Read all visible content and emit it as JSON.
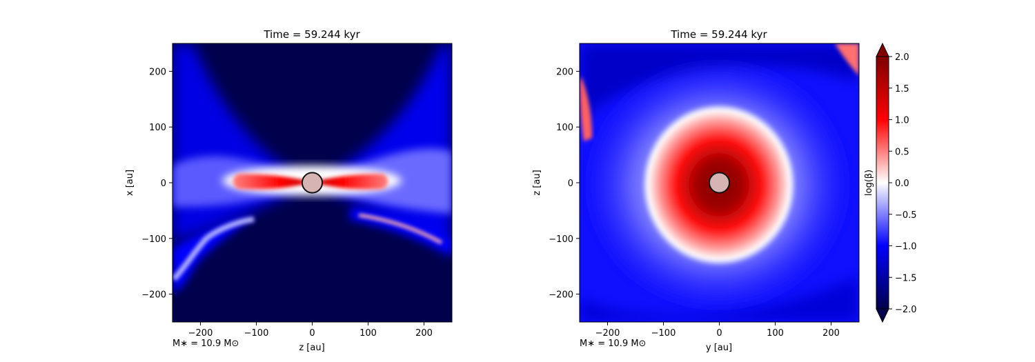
{
  "chart_data": [
    {
      "type": "heatmap",
      "title": "Time = 59.244 kyr",
      "xlabel": "z [au]",
      "ylabel": "x [au]",
      "xlim": [
        -250,
        250
      ],
      "ylim": [
        -250,
        250
      ],
      "xticks": [
        -200,
        -100,
        0,
        100,
        200
      ],
      "yticks": [
        -200,
        -100,
        0,
        100,
        200
      ],
      "annotation": "M∗ = 10.9 M⊙",
      "sink_radius": 18,
      "sink_center": [
        0,
        0
      ],
      "view": "edge-on"
    },
    {
      "type": "heatmap",
      "title": "Time = 59.244 kyr",
      "xlabel": "y [au]",
      "ylabel": "z [au]",
      "xlim": [
        -250,
        250
      ],
      "ylim": [
        -250,
        250
      ],
      "xticks": [
        -200,
        -100,
        0,
        100,
        200
      ],
      "yticks": [
        -200,
        -100,
        0,
        100,
        200
      ],
      "annotation": "M∗ = 10.9 M⊙",
      "sink_radius": 18,
      "sink_center": [
        0,
        0
      ],
      "view": "face-on"
    }
  ],
  "colorbar": {
    "label": "log(β)",
    "range": [
      -2.0,
      2.0
    ],
    "ticks": [
      "−2.0",
      "−1.5",
      "−1.0",
      "−0.5",
      "0.0",
      "0.5",
      "1.0",
      "1.5",
      "2.0"
    ],
    "tick_values": [
      -2.0,
      -1.5,
      -1.0,
      -0.5,
      0.0,
      0.5,
      1.0,
      1.5,
      2.0
    ],
    "colormap": "seismic",
    "extend": "both",
    "colors": {
      "low": "#00004c",
      "mid_low": "#0000ff",
      "mid": "#ffffff",
      "mid_high": "#ff0000",
      "high": "#800000"
    }
  }
}
